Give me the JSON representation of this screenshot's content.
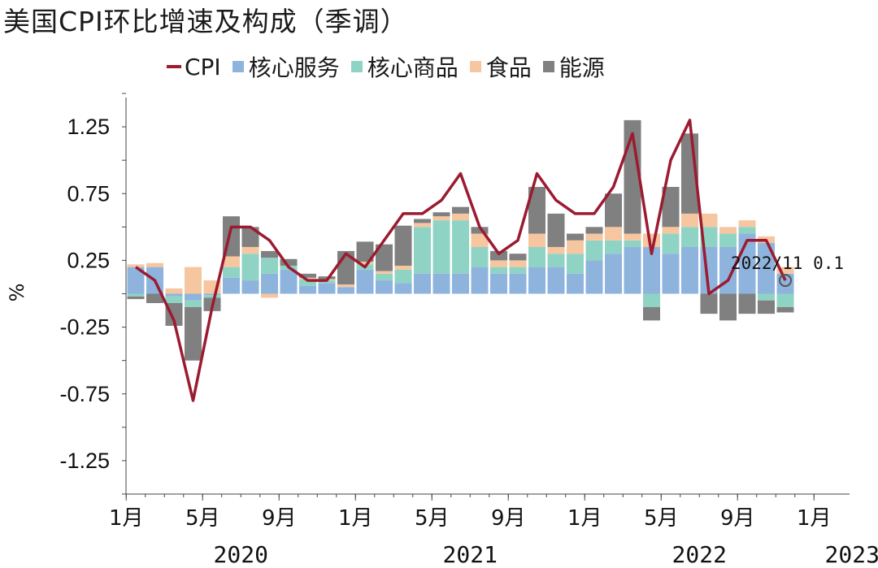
{
  "chart_data": {
    "type": "bar",
    "title": "美国CPI环比增速及构成（季调）",
    "ylabel": "%",
    "ylim": [
      -1.5,
      1.5
    ],
    "yticks": [
      -1.25,
      -0.75,
      -0.25,
      0.25,
      0.75,
      1.25
    ],
    "ytick_labels": [
      "-1.25",
      "-0.75",
      "-0.25",
      "0.25",
      "0.75",
      "1.25"
    ],
    "xtick_labels": [
      "1月",
      "5月",
      "9月",
      "1月",
      "5月",
      "9月",
      "1月",
      "5月",
      "9月",
      "1月"
    ],
    "years": [
      "2020",
      "2021",
      "2022",
      "2023"
    ],
    "legend_position": "top",
    "grid": false,
    "categories": [
      "2020/01",
      "2020/02",
      "2020/03",
      "2020/04",
      "2020/05",
      "2020/06",
      "2020/07",
      "2020/08",
      "2020/09",
      "2020/10",
      "2020/11",
      "2020/12",
      "2021/01",
      "2021/02",
      "2021/03",
      "2021/04",
      "2021/05",
      "2021/06",
      "2021/07",
      "2021/08",
      "2021/09",
      "2021/10",
      "2021/11",
      "2021/12",
      "2022/01",
      "2022/02",
      "2022/03",
      "2022/04",
      "2022/05",
      "2022/06",
      "2022/07",
      "2022/08",
      "2022/09",
      "2022/10",
      "2022/11"
    ],
    "series": [
      {
        "name": "CPI",
        "type": "line",
        "color": "#9b1b30",
        "values": [
          0.2,
          0.1,
          -0.2,
          -0.8,
          -0.1,
          0.5,
          0.5,
          0.4,
          0.2,
          0.1,
          0.1,
          0.3,
          0.2,
          0.4,
          0.6,
          0.6,
          0.7,
          0.9,
          0.5,
          0.3,
          0.4,
          0.9,
          0.7,
          0.6,
          0.6,
          0.8,
          1.2,
          0.3,
          1.0,
          1.3,
          0.0,
          0.1,
          0.4,
          0.4,
          0.1
        ]
      },
      {
        "name": "核心服务",
        "type": "bar",
        "color": "#8eb4de",
        "values": [
          0.2,
          0.2,
          -0.02,
          -0.05,
          -0.01,
          0.12,
          0.1,
          0.15,
          0.18,
          0.06,
          0.08,
          0.05,
          0.18,
          0.1,
          0.08,
          0.15,
          0.15,
          0.15,
          0.2,
          0.15,
          0.15,
          0.2,
          0.2,
          0.15,
          0.25,
          0.3,
          0.35,
          0.35,
          0.3,
          0.35,
          0.35,
          0.35,
          0.45,
          0.38,
          0.15
        ]
      },
      {
        "name": "核心商品",
        "type": "bar",
        "color": "#8fd3c4",
        "values": [
          -0.02,
          0.0,
          -0.05,
          -0.05,
          -0.02,
          0.08,
          0.2,
          0.12,
          0.03,
          0.05,
          0.02,
          0.0,
          0.04,
          0.05,
          0.1,
          0.35,
          0.4,
          0.4,
          0.15,
          0.05,
          0.05,
          0.15,
          0.1,
          0.15,
          0.15,
          0.1,
          0.05,
          -0.1,
          0.15,
          0.15,
          0.15,
          0.1,
          0.05,
          -0.05,
          -0.1
        ]
      },
      {
        "name": "食品",
        "type": "bar",
        "color": "#f6c6a0",
        "values": [
          0.02,
          0.03,
          0.04,
          0.2,
          0.1,
          0.08,
          0.05,
          -0.03,
          0.0,
          0.01,
          0.01,
          0.02,
          0.02,
          0.02,
          0.03,
          0.03,
          0.03,
          0.05,
          0.1,
          0.05,
          0.05,
          0.1,
          0.05,
          0.1,
          0.05,
          0.1,
          0.05,
          0.1,
          0.05,
          0.1,
          0.1,
          0.05,
          0.05,
          0.05,
          0.05
        ]
      },
      {
        "name": "能源",
        "type": "bar",
        "color": "#808080",
        "values": [
          -0.02,
          -0.07,
          -0.17,
          -0.4,
          -0.1,
          0.3,
          0.15,
          0.05,
          0.05,
          0.03,
          0.02,
          0.25,
          0.15,
          0.2,
          0.3,
          0.03,
          0.03,
          0.05,
          0.05,
          0.07,
          0.05,
          0.35,
          0.25,
          0.05,
          0.05,
          0.25,
          0.85,
          -0.1,
          0.3,
          0.6,
          -0.15,
          -0.2,
          -0.15,
          -0.1,
          -0.04
        ]
      }
    ],
    "annotations": [
      {
        "text": "2022/11 0.1",
        "category": "2022/11",
        "value": 0.1
      }
    ]
  }
}
